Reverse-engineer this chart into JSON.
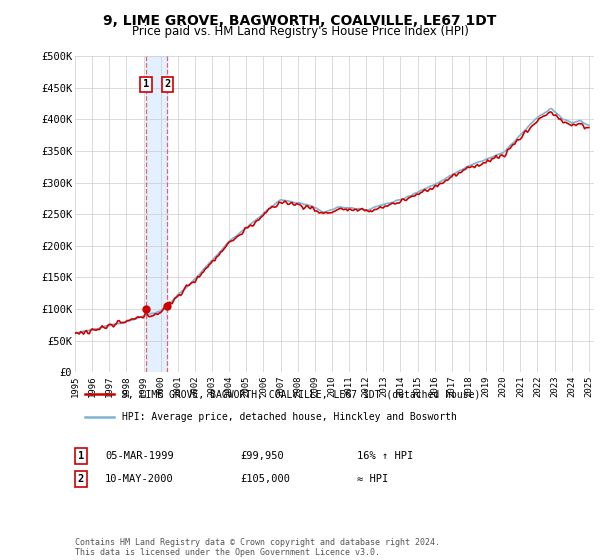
{
  "title": "9, LIME GROVE, BAGWORTH, COALVILLE, LE67 1DT",
  "subtitle": "Price paid vs. HM Land Registry's House Price Index (HPI)",
  "legend_line1": "9, LIME GROVE, BAGWORTH, COALVILLE, LE67 1DT (detached house)",
  "legend_line2": "HPI: Average price, detached house, Hinckley and Bosworth",
  "table_rows": [
    {
      "num": "1",
      "date": "05-MAR-1999",
      "price": "£99,950",
      "hpi": "16% ↑ HPI"
    },
    {
      "num": "2",
      "date": "10-MAY-2000",
      "price": "£105,000",
      "hpi": "≈ HPI"
    }
  ],
  "footnote": "Contains HM Land Registry data © Crown copyright and database right 2024.\nThis data is licensed under the Open Government Licence v3.0.",
  "sale_color": "#cc0000",
  "hpi_color": "#7fb3d3",
  "background_color": "#ffffff",
  "plot_bg_color": "#ffffff",
  "grid_color": "#cccccc",
  "shade_color": "#ddeeff",
  "ylim": [
    0,
    500000
  ],
  "yticks": [
    0,
    50000,
    100000,
    150000,
    200000,
    250000,
    300000,
    350000,
    400000,
    450000,
    500000
  ],
  "ytick_labels": [
    "£0",
    "£50K",
    "£100K",
    "£150K",
    "£200K",
    "£250K",
    "£300K",
    "£350K",
    "£400K",
    "£450K",
    "£500K"
  ],
  "xtick_years": [
    1995,
    1996,
    1997,
    1998,
    1999,
    2000,
    2001,
    2002,
    2003,
    2004,
    2005,
    2006,
    2007,
    2008,
    2009,
    2010,
    2011,
    2012,
    2013,
    2014,
    2015,
    2016,
    2017,
    2018,
    2019,
    2020,
    2021,
    2022,
    2023,
    2024,
    2025
  ],
  "sale1_date": 1999.17,
  "sale2_date": 2000.37,
  "sale1_price": 99950,
  "sale2_price": 105000,
  "marker_labels": [
    "1",
    "2"
  ]
}
